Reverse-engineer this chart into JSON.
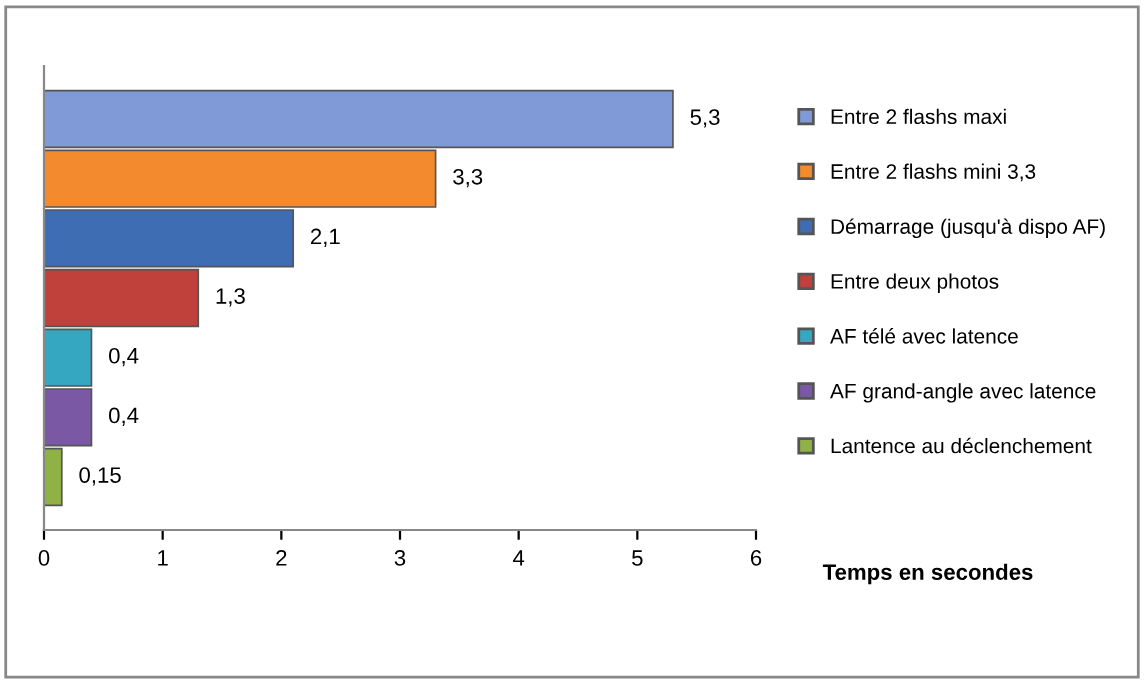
{
  "chart_data": {
    "type": "bar",
    "orientation": "horizontal",
    "xlabel": "Temps en secondes",
    "categories": [
      null
    ],
    "series": [
      {
        "name": "Entre 2 flashs maxi",
        "color": "#7f9ad6",
        "values": [
          5.3
        ],
        "value_labels": [
          "5,3"
        ]
      },
      {
        "name": "Entre 2 flashs mini 3,3",
        "color": "#f38a2e",
        "values": [
          3.3
        ],
        "value_labels": [
          "3,3"
        ]
      },
      {
        "name": "Démarrage (jusqu'à dispo AF)",
        "color": "#3f6db4",
        "values": [
          2.1
        ],
        "value_labels": [
          "2,1"
        ]
      },
      {
        "name": "Entre deux photos",
        "color": "#c0403c",
        "values": [
          1.3
        ],
        "value_labels": [
          "1,3"
        ]
      },
      {
        "name": "AF télé avec latence",
        "color": "#35a7c0",
        "values": [
          0.4
        ],
        "value_labels": [
          "0,4"
        ]
      },
      {
        "name": "AF grand-angle avec latence",
        "color": "#7a58a4",
        "values": [
          0.4
        ],
        "value_labels": [
          "0,4"
        ]
      },
      {
        "name": "Lantence au déclenchement",
        "color": "#8fb145",
        "values": [
          0.15
        ],
        "value_labels": [
          "0,15"
        ]
      }
    ],
    "xlim": [
      0,
      6
    ],
    "xticks": [
      0,
      1,
      2,
      3,
      4,
      5,
      6
    ],
    "grid": false,
    "legend": "right"
  }
}
